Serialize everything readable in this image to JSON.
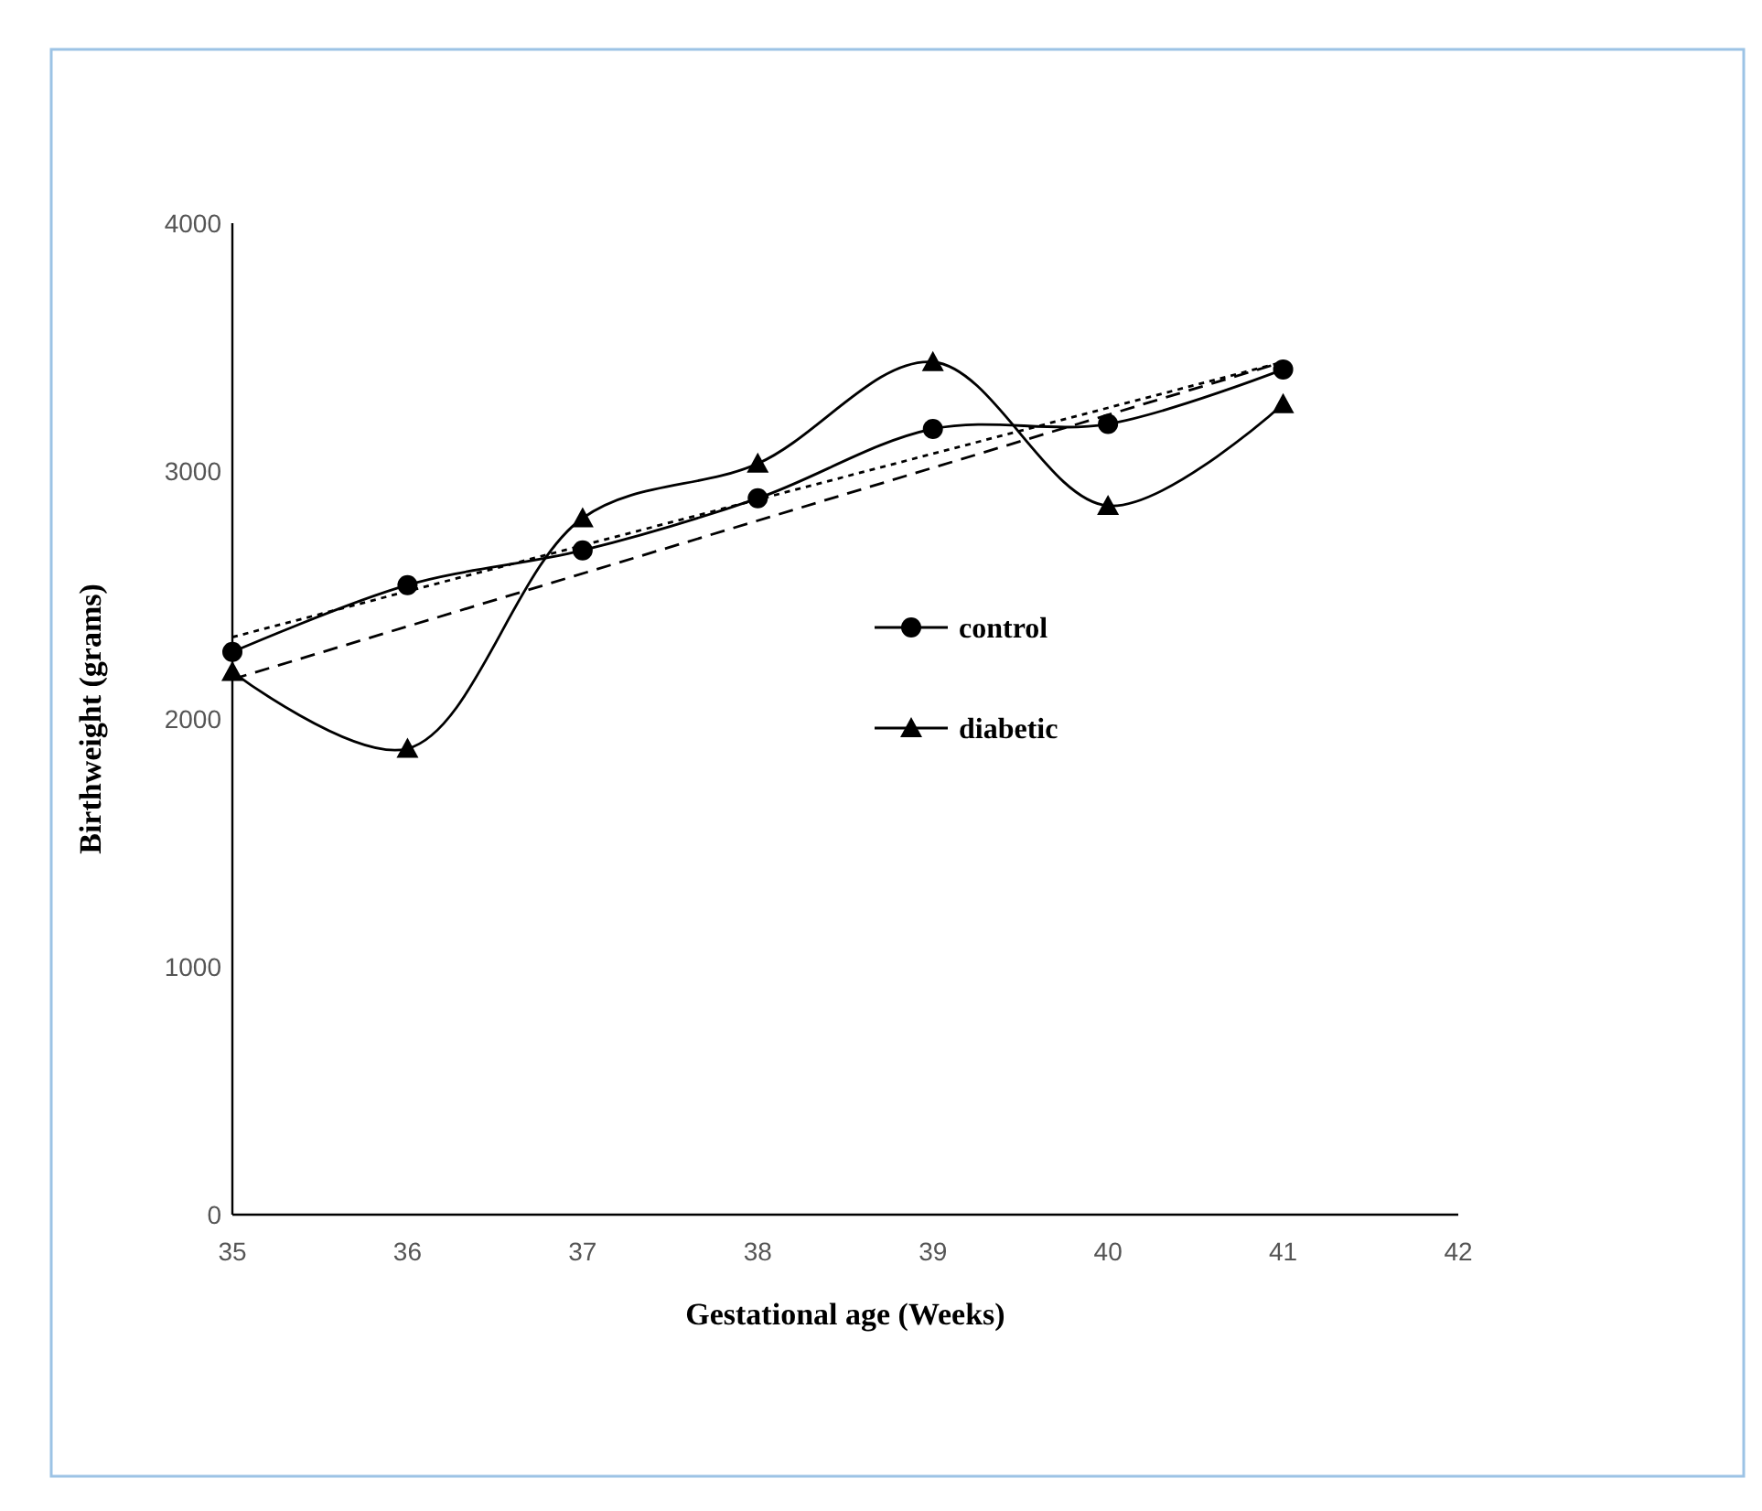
{
  "chart_data": {
    "type": "line",
    "xlabel": "Gestational age (Weeks)",
    "ylabel": "Birthweight (grams)",
    "xlim": [
      35,
      42
    ],
    "xticks": [
      35,
      36,
      37,
      38,
      39,
      40,
      41,
      42
    ],
    "ylim": [
      0,
      4000
    ],
    "yticks": [
      0,
      1000,
      2000,
      3000,
      4000
    ],
    "x": [
      35,
      36,
      37,
      38,
      39,
      40,
      41
    ],
    "grid": false,
    "legend": "right",
    "series": [
      {
        "name": "control",
        "color": "#000000",
        "marker": "circle",
        "line_style": "solid",
        "values": [
          2270,
          2540,
          2680,
          2890,
          3170,
          3190,
          3410
        ]
      },
      {
        "name": "diabetic",
        "color": "#000000",
        "marker": "triangle",
        "line_style": "solid",
        "values": [
          2190,
          1880,
          2810,
          3030,
          3440,
          2860,
          3270
        ]
      },
      {
        "color": "#000000",
        "marker": "none",
        "line_style": "dotted",
        "values": [
          2330,
          null,
          null,
          null,
          null,
          null,
          3440
        ]
      },
      {
        "color": "#000000",
        "marker": "none",
        "line_style": "dashed",
        "values": [
          2160,
          null,
          null,
          null,
          null,
          null,
          3440
        ]
      }
    ]
  }
}
